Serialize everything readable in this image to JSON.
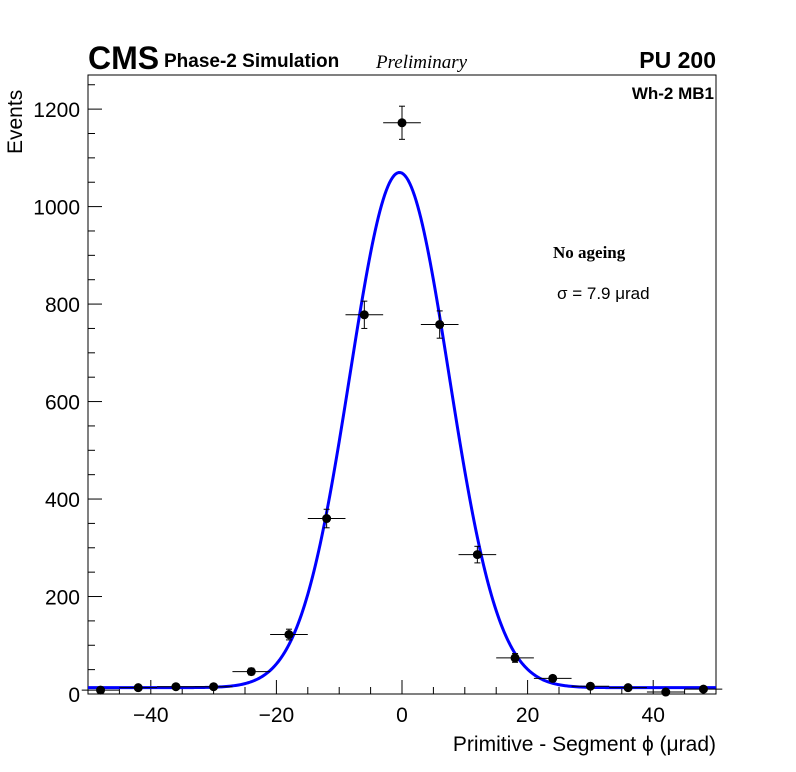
{
  "header": {
    "experiment": "CMS",
    "subtitle": "Phase-2 Simulation",
    "status": "Preliminary",
    "pileup": "PU 200",
    "chamber": "Wh-2 MB1"
  },
  "legend": {
    "condition": "No ageing",
    "resolution": "σ = 7.9 μrad"
  },
  "chart_data": {
    "type": "scatter",
    "xlabel": "Primitive - Segment ϕ (μrad)",
    "ylabel": "Events",
    "xlim": [
      -50,
      50
    ],
    "ylim": [
      0,
      1270
    ],
    "x_ticks": [
      -40,
      -20,
      0,
      20,
      40
    ],
    "x_tick_labels": [
      "−40",
      "−20",
      "0",
      "20",
      "40"
    ],
    "y_ticks": [
      0,
      200,
      400,
      600,
      800,
      1000,
      1200
    ],
    "y_tick_labels": [
      "0",
      "200",
      "400",
      "600",
      "800",
      "1000",
      "1200"
    ],
    "grid": false,
    "series": [
      {
        "kind": "points-with-errors",
        "color": "#000000",
        "x": [
          -48,
          -42,
          -36,
          -30,
          -24,
          -18,
          -12,
          -6,
          0,
          6,
          12,
          18,
          24,
          30,
          36,
          42,
          48
        ],
        "y": [
          8,
          13,
          15,
          15,
          46,
          122,
          360,
          778,
          1172,
          758,
          286,
          74,
          32,
          16,
          13,
          4,
          10
        ],
        "y_err": [
          3,
          4,
          4,
          4,
          7,
          11,
          19,
          28,
          34,
          28,
          17,
          9,
          6,
          4,
          4,
          2,
          3
        ],
        "x_halfwidth": 3
      },
      {
        "kind": "gaussian-fit",
        "color": "#0000ff",
        "amplitude": 1057,
        "mean": -0.4,
        "sigma": 7.9,
        "baseline": 13
      }
    ]
  }
}
